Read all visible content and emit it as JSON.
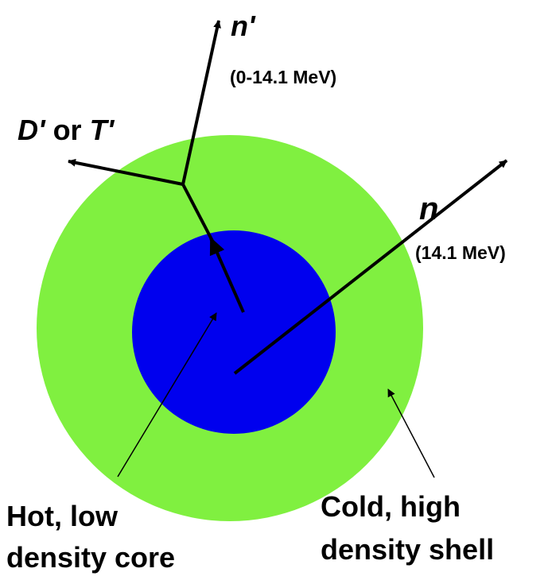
{
  "colors": {
    "shell": "#80f040",
    "core": "#0000ee",
    "ink": "#000000"
  },
  "labels": {
    "scattered_neutron_symbol": "n'",
    "scattered_neutron_energy": "(0-14.1 MeV)",
    "recoil_d": "D'",
    "recoil_or": " or ",
    "recoil_t": "T'",
    "primary_neutron_symbol": "n",
    "primary_neutron_energy": "(14.1 MeV)",
    "core_line1": "Hot, low",
    "core_line2": "density core",
    "shell_line1": "Cold, high",
    "shell_line2": "density shell"
  }
}
